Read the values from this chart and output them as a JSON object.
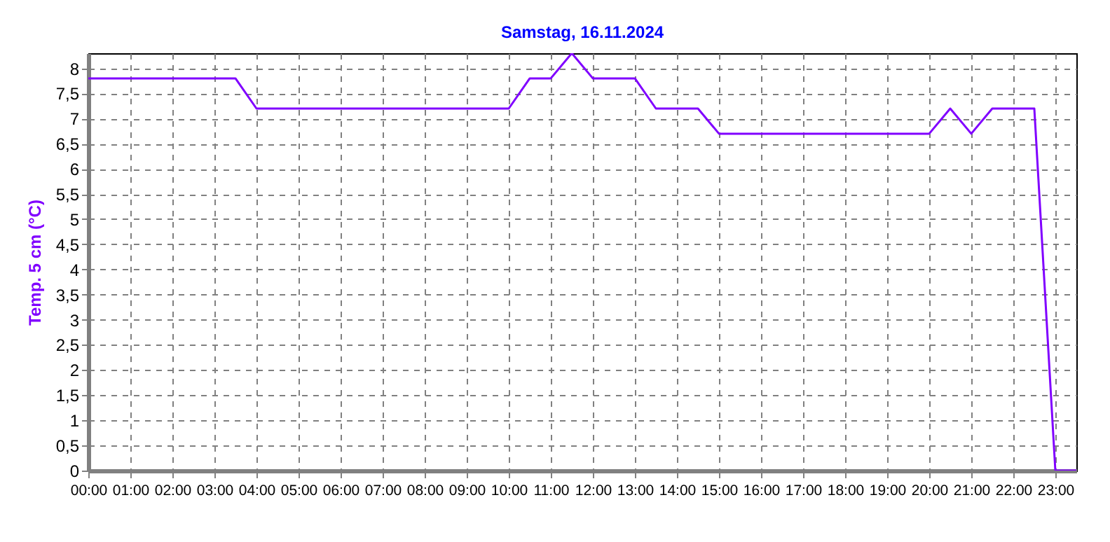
{
  "chart_data": {
    "type": "line",
    "title": "Samstag, 16.11.2024",
    "ylabel": "Temp. 5 cm  (°C)",
    "x": [
      0,
      3.5,
      4,
      10,
      10.5,
      11,
      11.5,
      12,
      13,
      13.5,
      14.5,
      15,
      20,
      20.5,
      21,
      21.5,
      22.5,
      23,
      23.5
    ],
    "series": [
      {
        "color": "#8000ff",
        "values": [
          7.8,
          7.8,
          7.2,
          7.2,
          7.8,
          7.8,
          8.3,
          7.8,
          7.8,
          7.2,
          7.2,
          6.7,
          6.7,
          7.2,
          6.7,
          7.2,
          7.2,
          0,
          0
        ]
      }
    ],
    "xlim": [
      0,
      23.5
    ],
    "xticks": [
      {
        "value": 0,
        "label": "00:00"
      },
      {
        "value": 1,
        "label": "01:00"
      },
      {
        "value": 2,
        "label": "02:00"
      },
      {
        "value": 3,
        "label": "03:00"
      },
      {
        "value": 4,
        "label": "04:00"
      },
      {
        "value": 5,
        "label": "05:00"
      },
      {
        "value": 6,
        "label": "06:00"
      },
      {
        "value": 7,
        "label": "07:00"
      },
      {
        "value": 8,
        "label": "08:00"
      },
      {
        "value": 9,
        "label": "09:00"
      },
      {
        "value": 10,
        "label": "10:00"
      },
      {
        "value": 11,
        "label": "11:00"
      },
      {
        "value": 12,
        "label": "12:00"
      },
      {
        "value": 13,
        "label": "13:00"
      },
      {
        "value": 14,
        "label": "14:00"
      },
      {
        "value": 15,
        "label": "15:00"
      },
      {
        "value": 16,
        "label": "16:00"
      },
      {
        "value": 17,
        "label": "17:00"
      },
      {
        "value": 18,
        "label": "18:00"
      },
      {
        "value": 19,
        "label": "19:00"
      },
      {
        "value": 20,
        "label": "20:00"
      },
      {
        "value": 21,
        "label": "21:00"
      },
      {
        "value": 22,
        "label": "22:00"
      },
      {
        "value": 23,
        "label": "23:00"
      }
    ],
    "ylim": [
      0,
      8.3
    ],
    "yticks": [
      0,
      {
        "value": 0.5,
        "label": "0,5"
      },
      1,
      {
        "value": 1.5,
        "label": "1,5"
      },
      2,
      {
        "value": 2.5,
        "label": "2,5"
      },
      3,
      {
        "value": 3.5,
        "label": "3,5"
      },
      4,
      {
        "value": 4.5,
        "label": "4,5"
      },
      5,
      {
        "value": 5.5,
        "label": "5,5"
      },
      6,
      {
        "value": 6.5,
        "label": "6,5"
      },
      7,
      {
        "value": 7.5,
        "label": "7,5"
      },
      8
    ],
    "grid": true,
    "line_style": "solid"
  }
}
